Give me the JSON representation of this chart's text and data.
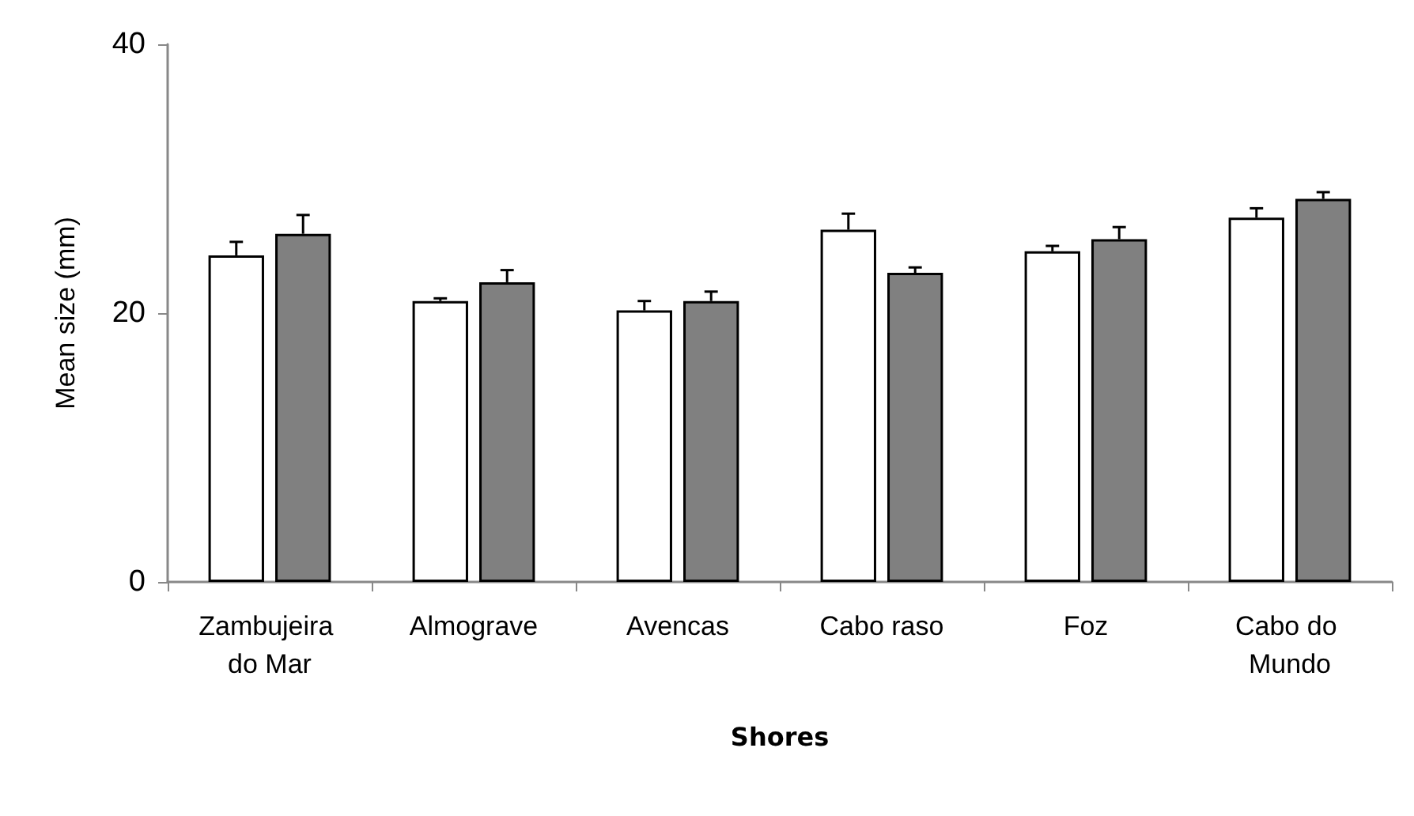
{
  "chart_data": {
    "type": "bar",
    "xlabel": "Shores",
    "ylabel": "Mean size (mm)",
    "categories": [
      "Zambujeira do Mar",
      "Almograve",
      "Avencas",
      "Cabo raso",
      "Foz",
      "Cabo do Mundo"
    ],
    "series": [
      {
        "color": "#ffffff",
        "values": [
          24.3,
          20.9,
          20.2,
          26.2,
          24.6,
          27.1
        ],
        "errors": [
          1.0,
          0.2,
          0.7,
          1.2,
          0.4,
          0.7
        ]
      },
      {
        "color": "#808080",
        "values": [
          25.9,
          22.3,
          20.9,
          23.0,
          25.5,
          28.5
        ],
        "errors": [
          1.4,
          0.9,
          0.7,
          0.4,
          0.9,
          0.5
        ]
      }
    ],
    "ylim": [
      0,
      40
    ],
    "yticks": [
      0,
      20,
      40
    ],
    "grid": false
  }
}
